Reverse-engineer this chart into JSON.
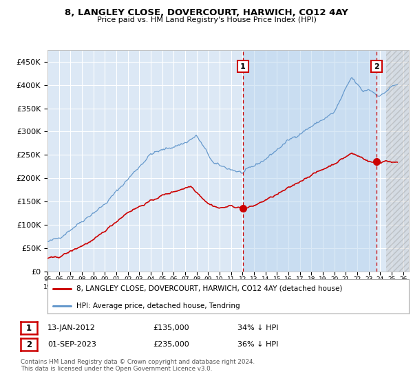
{
  "title": "8, LANGLEY CLOSE, DOVERCOURT, HARWICH, CO12 4AY",
  "subtitle": "Price paid vs. HM Land Registry's House Price Index (HPI)",
  "ylabel_ticks": [
    "£0",
    "£50K",
    "£100K",
    "£150K",
    "£200K",
    "£250K",
    "£300K",
    "£350K",
    "£400K",
    "£450K"
  ],
  "ytick_values": [
    0,
    50000,
    100000,
    150000,
    200000,
    250000,
    300000,
    350000,
    400000,
    450000
  ],
  "ylim": [
    0,
    475000
  ],
  "xlim_start": 1995.0,
  "xlim_end": 2026.5,
  "xtick_years": [
    1995,
    1996,
    1997,
    1998,
    1999,
    2000,
    2001,
    2002,
    2003,
    2004,
    2005,
    2006,
    2007,
    2008,
    2009,
    2010,
    2011,
    2012,
    2013,
    2014,
    2015,
    2016,
    2017,
    2018,
    2019,
    2020,
    2021,
    2022,
    2023,
    2024,
    2025,
    2026
  ],
  "hpi_color": "#6699cc",
  "sale_color": "#cc0000",
  "vline_color": "#cc0000",
  "annotation1_label": "1",
  "annotation2_label": "2",
  "sale1_x": 2012.04,
  "sale1_y": 135000,
  "sale2_x": 2023.67,
  "sale2_y": 235000,
  "hatch_start": 2024.5,
  "shade_start": 2012.04,
  "legend_sale_label": "8, LANGLEY CLOSE, DOVERCOURT, HARWICH, CO12 4AY (detached house)",
  "legend_hpi_label": "HPI: Average price, detached house, Tendring",
  "note1_date": "13-JAN-2012",
  "note1_price": "£135,000",
  "note1_hpi": "34% ↓ HPI",
  "note2_date": "01-SEP-2023",
  "note2_price": "£235,000",
  "note2_hpi": "36% ↓ HPI",
  "footer": "Contains HM Land Registry data © Crown copyright and database right 2024.\nThis data is licensed under the Open Government Licence v3.0.",
  "plot_bg_color": "#dce8f5",
  "fig_bg_color": "#ffffff"
}
